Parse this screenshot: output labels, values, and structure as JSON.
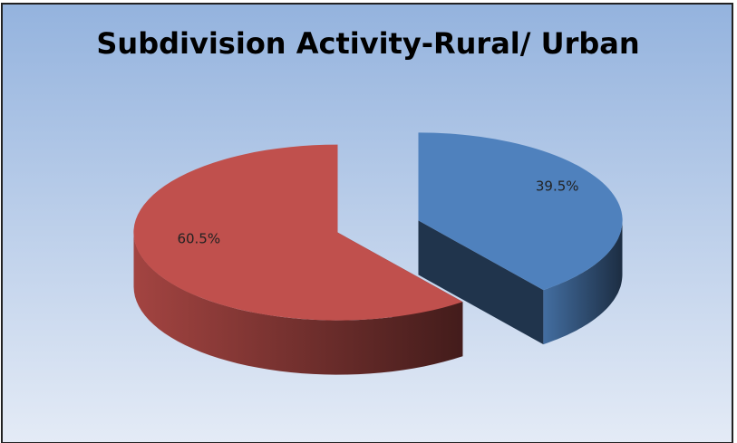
{
  "chart_data": {
    "type": "pie3d",
    "title": "Subdivision Activity-Rural/ Urban",
    "values": [
      39.5,
      60.5
    ],
    "value_labels": [
      "39.5%",
      "60.5%"
    ],
    "colors": [
      "#4f81bd",
      "#c0504d"
    ]
  }
}
